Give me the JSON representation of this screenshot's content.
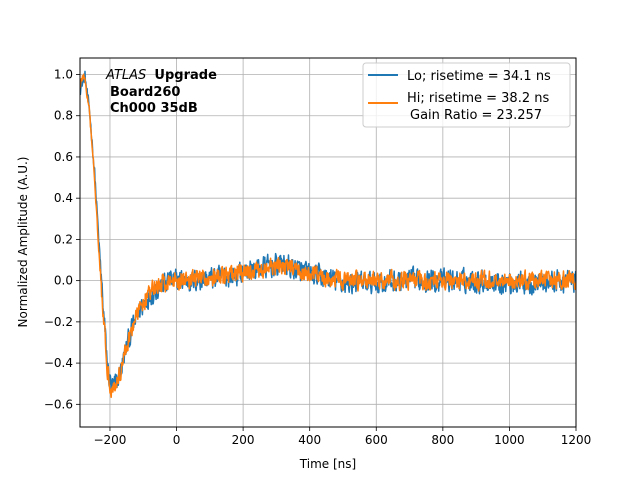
{
  "chart_data": {
    "type": "line",
    "xlabel": "Time [ns]",
    "ylabel": "Normalized Amplitude (A.U.)",
    "xlim": [
      -290,
      1200
    ],
    "ylim": [
      -0.71,
      1.08
    ],
    "xticks": [
      -200,
      0,
      200,
      400,
      600,
      800,
      1000,
      1200
    ],
    "yticks": [
      -0.6,
      -0.4,
      -0.2,
      0.0,
      0.2,
      0.4,
      0.6,
      0.8,
      1.0
    ],
    "xtick_labels": [
      "−200",
      "0",
      "200",
      "400",
      "600",
      "800",
      "1000",
      "1200"
    ],
    "ytick_labels": [
      "−0.6",
      "−0.4",
      "−0.2",
      "0.0",
      "0.2",
      "0.4",
      "0.6",
      "0.8",
      "1.0"
    ],
    "grid": true,
    "legend_position": "top-right",
    "annotation": {
      "atlas": "ATLAS",
      "upgrade": "Upgrade",
      "board": "Board260",
      "channel": "Ch000 35dB"
    },
    "series": [
      {
        "name": "Lo",
        "label": "Lo; risetime = 34.1 ns",
        "color": "#1f77b4",
        "noise": 0.075,
        "envelope": [
          [
            -290,
            0.93
          ],
          [
            -275,
            0.99
          ],
          [
            -260,
            0.8
          ],
          [
            -245,
            0.5
          ],
          [
            -230,
            0.1
          ],
          [
            -215,
            -0.25
          ],
          [
            -205,
            -0.45
          ],
          [
            -195,
            -0.52
          ],
          [
            -180,
            -0.5
          ],
          [
            -165,
            -0.42
          ],
          [
            -150,
            -0.32
          ],
          [
            -130,
            -0.22
          ],
          [
            -110,
            -0.14
          ],
          [
            -90,
            -0.09
          ],
          [
            -60,
            -0.04
          ],
          [
            -20,
            0.0
          ],
          [
            50,
            0.0
          ],
          [
            150,
            0.02
          ],
          [
            250,
            0.06
          ],
          [
            320,
            0.08
          ],
          [
            400,
            0.03
          ],
          [
            500,
            -0.01
          ],
          [
            600,
            -0.01
          ],
          [
            700,
            0.0
          ],
          [
            800,
            0.0
          ],
          [
            900,
            0.0
          ],
          [
            1000,
            -0.01
          ],
          [
            1100,
            -0.01
          ],
          [
            1200,
            0.0
          ]
        ]
      },
      {
        "name": "Hi",
        "label": "Hi; risetime = 38.2 ns",
        "label2": "Gain Ratio = 23.257",
        "color": "#ff7f0e",
        "noise": 0.06,
        "envelope": [
          [
            -290,
            0.95
          ],
          [
            -278,
            1.0
          ],
          [
            -262,
            0.82
          ],
          [
            -247,
            0.52
          ],
          [
            -232,
            0.12
          ],
          [
            -217,
            -0.23
          ],
          [
            -207,
            -0.44
          ],
          [
            -197,
            -0.52
          ],
          [
            -182,
            -0.51
          ],
          [
            -167,
            -0.43
          ],
          [
            -152,
            -0.33
          ],
          [
            -132,
            -0.22
          ],
          [
            -112,
            -0.14
          ],
          [
            -92,
            -0.08
          ],
          [
            -62,
            -0.03
          ],
          [
            -20,
            0.0
          ],
          [
            50,
            0.01
          ],
          [
            150,
            0.02
          ],
          [
            250,
            0.05
          ],
          [
            320,
            0.07
          ],
          [
            400,
            0.03
          ],
          [
            500,
            0.0
          ],
          [
            600,
            0.0
          ],
          [
            700,
            0.0
          ],
          [
            800,
            0.0
          ],
          [
            900,
            0.0
          ],
          [
            1000,
            0.0
          ],
          [
            1100,
            0.0
          ],
          [
            1200,
            0.0
          ]
        ]
      }
    ]
  }
}
